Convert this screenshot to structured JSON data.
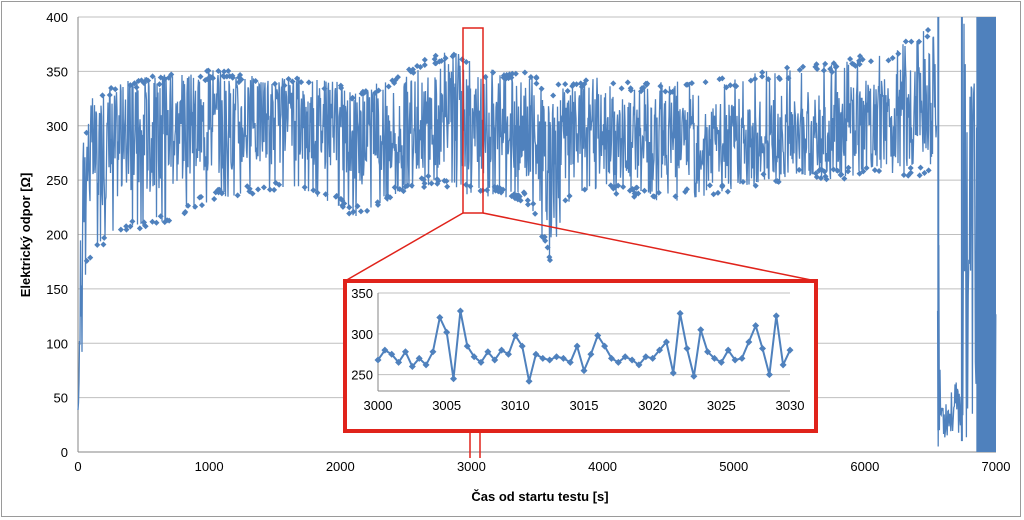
{
  "colors": {
    "series": "#4f81bd",
    "highlight": "#e0231b",
    "grid": "#bfbfbf"
  },
  "chart_data": [
    {
      "type": "line",
      "title": "",
      "xlabel": "Čas od startu testu [s]",
      "ylabel": "Elektrický odpor [Ω]",
      "xlim": [
        0,
        7000
      ],
      "ylim": [
        0,
        400
      ],
      "x_ticks": [
        "0",
        "1000",
        "2000",
        "3000",
        "4000",
        "5000",
        "6000",
        "7000"
      ],
      "y_ticks": [
        "0",
        "50",
        "100",
        "150",
        "200",
        "250",
        "300",
        "350",
        "400"
      ],
      "grid": "horizontal",
      "marker": "diamond",
      "x": [
        0,
        20,
        40,
        60,
        100,
        200,
        300,
        500,
        800,
        1000,
        1200,
        1500,
        1700,
        2000,
        2100,
        2300,
        2500,
        2700,
        2900,
        3000,
        3200,
        3400,
        3500,
        3600,
        3700,
        3800,
        4000,
        4200,
        4500,
        4800,
        5000,
        5200,
        5500,
        5800,
        6000,
        6200,
        6400,
        6500,
        6550
      ],
      "y": [
        38,
        150,
        240,
        270,
        275,
        280,
        285,
        290,
        298,
        300,
        302,
        303,
        305,
        300,
        285,
        295,
        300,
        305,
        315,
        300,
        298,
        295,
        285,
        255,
        290,
        295,
        295,
        290,
        288,
        287,
        285,
        288,
        292,
        296,
        300,
        305,
        312,
        318,
        310
      ],
      "envelope": {
        "x": [
          0,
          20,
          40,
          60,
          100,
          200,
          300,
          500,
          800,
          1000,
          1200,
          1500,
          1700,
          2000,
          2100,
          2300,
          2500,
          2700,
          2900,
          3000,
          3200,
          3400,
          3500,
          3600,
          3700,
          3800,
          4000,
          4200,
          4500,
          4800,
          5000,
          5200,
          5500,
          5800,
          6000,
          6200,
          6400,
          6500,
          6550
        ],
        "low": [
          38,
          60,
          110,
          170,
          175,
          190,
          200,
          205,
          215,
          230,
          235,
          240,
          240,
          225,
          215,
          225,
          240,
          245,
          240,
          235,
          235,
          230,
          215,
          170,
          220,
          235,
          240,
          235,
          230,
          235,
          240,
          245,
          250,
          250,
          255,
          255,
          250,
          260,
          255
        ],
        "high": [
          40,
          220,
          280,
          300,
          315,
          330,
          340,
          345,
          350,
          352,
          350,
          345,
          345,
          340,
          330,
          340,
          350,
          365,
          370,
          360,
          350,
          350,
          345,
          335,
          340,
          345,
          345,
          340,
          340,
          345,
          345,
          350,
          355,
          360,
          365,
          370,
          385,
          390,
          385
        ]
      },
      "after_failure": {
        "x": [
          6560,
          6570,
          6600,
          6650,
          6700,
          6740,
          6750,
          6760,
          6800,
          6850,
          6900,
          6950,
          7000
        ],
        "low": [
          0,
          5,
          10,
          15,
          20,
          10,
          0,
          5,
          10,
          5,
          0,
          5,
          10
        ],
        "high": [
          400,
          80,
          60,
          55,
          65,
          70,
          400,
          400,
          400,
          400,
          400,
          400,
          400
        ]
      }
    },
    {
      "type": "line",
      "title": "",
      "xlabel": "",
      "ylabel": "",
      "xlim": [
        3000,
        3030
      ],
      "ylim": [
        230,
        350
      ],
      "x_ticks": [
        "3000",
        "3005",
        "3010",
        "3015",
        "3020",
        "3025",
        "3030"
      ],
      "y_ticks": [
        "250",
        "300",
        "350"
      ],
      "grid": "horizontal",
      "marker": "diamond",
      "x": [
        3000,
        3000.5,
        3001,
        3001.5,
        3002,
        3002.5,
        3003,
        3003.5,
        3004,
        3004.5,
        3005,
        3005.5,
        3006,
        3006.5,
        3007,
        3007.5,
        3008,
        3008.5,
        3009,
        3009.5,
        3010,
        3010.5,
        3011,
        3011.5,
        3012,
        3012.5,
        3013,
        3013.5,
        3014,
        3014.5,
        3015,
        3015.5,
        3016,
        3016.5,
        3017,
        3017.5,
        3018,
        3018.5,
        3019,
        3019.5,
        3020,
        3020.5,
        3021,
        3021.5,
        3022,
        3022.5,
        3023,
        3023.5,
        3024,
        3024.5,
        3025,
        3025.5,
        3026,
        3026.5,
        3027,
        3027.5,
        3028,
        3028.5,
        3029,
        3029.5,
        3030
      ],
      "y": [
        268,
        280,
        275,
        265,
        278,
        260,
        270,
        262,
        278,
        320,
        302,
        245,
        328,
        285,
        272,
        265,
        278,
        268,
        280,
        275,
        298,
        285,
        242,
        275,
        270,
        268,
        272,
        270,
        265,
        285,
        255,
        275,
        298,
        285,
        270,
        265,
        272,
        268,
        262,
        272,
        270,
        280,
        290,
        252,
        325,
        282,
        248,
        305,
        278,
        270,
        265,
        280,
        268,
        270,
        290,
        310,
        282,
        250,
        322,
        262,
        280
      ]
    }
  ]
}
